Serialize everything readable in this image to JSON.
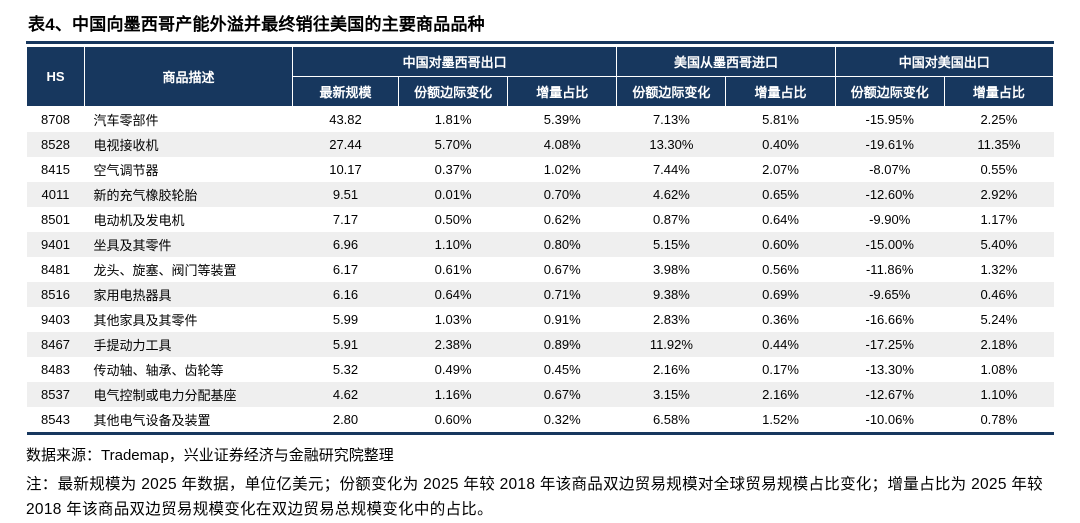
{
  "page": {
    "title": "表4、中国向墨西哥产能外溢并最终销往美国的主要商品品种"
  },
  "colors": {
    "header_navy": "#17375e",
    "zebra_gray": "#efefef"
  },
  "table": {
    "col_headers": {
      "hs": "HS",
      "desc": "商品描述"
    },
    "groups": [
      {
        "label": "中国对墨西哥出口",
        "subcols": [
          "最新规模",
          "份额边际变化",
          "增量占比"
        ]
      },
      {
        "label": "美国从墨西哥进口",
        "subcols": [
          "份额边际变化",
          "增量占比"
        ]
      },
      {
        "label": "中国对美国出口",
        "subcols": [
          "份额边际变化",
          "增量占比"
        ]
      }
    ],
    "rows": [
      {
        "hs": "8708",
        "desc": "汽车零部件",
        "values": [
          "43.82",
          "1.81%",
          "5.39%",
          "7.13%",
          "5.81%",
          "-15.95%",
          "2.25%"
        ]
      },
      {
        "hs": "8528",
        "desc": "电视接收机",
        "values": [
          "27.44",
          "5.70%",
          "4.08%",
          "13.30%",
          "0.40%",
          "-19.61%",
          "11.35%"
        ]
      },
      {
        "hs": "8415",
        "desc": "空气调节器",
        "values": [
          "10.17",
          "0.37%",
          "1.02%",
          "7.44%",
          "2.07%",
          "-8.07%",
          "0.55%"
        ]
      },
      {
        "hs": "4011",
        "desc": "新的充气橡胶轮胎",
        "values": [
          "9.51",
          "0.01%",
          "0.70%",
          "4.62%",
          "0.65%",
          "-12.60%",
          "2.92%"
        ]
      },
      {
        "hs": "8501",
        "desc": "电动机及发电机",
        "values": [
          "7.17",
          "0.50%",
          "0.62%",
          "0.87%",
          "0.64%",
          "-9.90%",
          "1.17%"
        ]
      },
      {
        "hs": "9401",
        "desc": "坐具及其零件",
        "values": [
          "6.96",
          "1.10%",
          "0.80%",
          "5.15%",
          "0.60%",
          "-15.00%",
          "5.40%"
        ]
      },
      {
        "hs": "8481",
        "desc": "龙头、旋塞、阀门等装置",
        "values": [
          "6.17",
          "0.61%",
          "0.67%",
          "3.98%",
          "0.56%",
          "-11.86%",
          "1.32%"
        ]
      },
      {
        "hs": "8516",
        "desc": "家用电热器具",
        "values": [
          "6.16",
          "0.64%",
          "0.71%",
          "9.38%",
          "0.69%",
          "-9.65%",
          "0.46%"
        ]
      },
      {
        "hs": "9403",
        "desc": "其他家具及其零件",
        "values": [
          "5.99",
          "1.03%",
          "0.91%",
          "2.83%",
          "0.36%",
          "-16.66%",
          "5.24%"
        ]
      },
      {
        "hs": "8467",
        "desc": "手提动力工具",
        "values": [
          "5.91",
          "2.38%",
          "0.89%",
          "11.92%",
          "0.44%",
          "-17.25%",
          "2.18%"
        ]
      },
      {
        "hs": "8483",
        "desc": "传动轴、轴承、齿轮等",
        "values": [
          "5.32",
          "0.49%",
          "0.45%",
          "2.16%",
          "0.17%",
          "-13.30%",
          "1.08%"
        ]
      },
      {
        "hs": "8537",
        "desc": "电气控制或电力分配基座",
        "values": [
          "4.62",
          "1.16%",
          "0.67%",
          "3.15%",
          "2.16%",
          "-12.67%",
          "1.10%"
        ]
      },
      {
        "hs": "8543",
        "desc": "其他电气设备及装置",
        "values": [
          "2.80",
          "0.60%",
          "0.32%",
          "6.58%",
          "1.52%",
          "-10.06%",
          "0.78%"
        ]
      }
    ]
  },
  "footer": {
    "source": "数据来源：Trademap，兴业证券经济与金融研究院整理",
    "note": "注：最新规模为 2025 年数据，单位亿美元；份额变化为 2025 年较 2018 年该商品双边贸易规模对全球贸易规模占比变化；增量占比为 2025 年较 2018 年该商品双边贸易规模变化在双边贸易总规模变化中的占比。"
  }
}
